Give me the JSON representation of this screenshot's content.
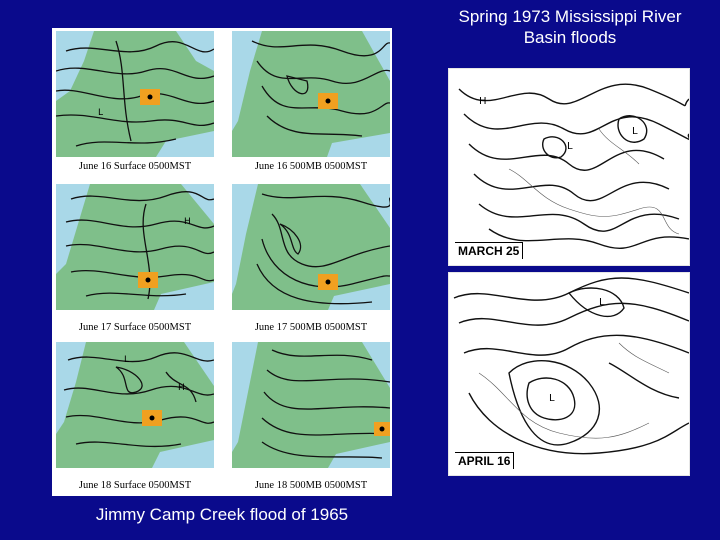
{
  "title": "Spring 1973 Mississippi River Basin floods",
  "caption": "Jimmy Camp Creek flood  of 1965",
  "left_maps": [
    {
      "label": "June 16 Surface 0500MST"
    },
    {
      "label": "June 16 500MB 0500MST"
    },
    {
      "label": "June 17 Surface 0500MST"
    },
    {
      "label": "June 17 500MB 0500MST"
    },
    {
      "label": "June 18 Surface 0500MST"
    },
    {
      "label": "June 18 500MB 0500MST"
    }
  ],
  "right_maps": [
    {
      "label": "MARCH 25"
    },
    {
      "label": "APRIL 16"
    }
  ],
  "colors": {
    "background": "#0a0a8c",
    "map_land": "#7fbf8a",
    "map_water": "#a9d8e8",
    "marker": "#f0a020"
  }
}
